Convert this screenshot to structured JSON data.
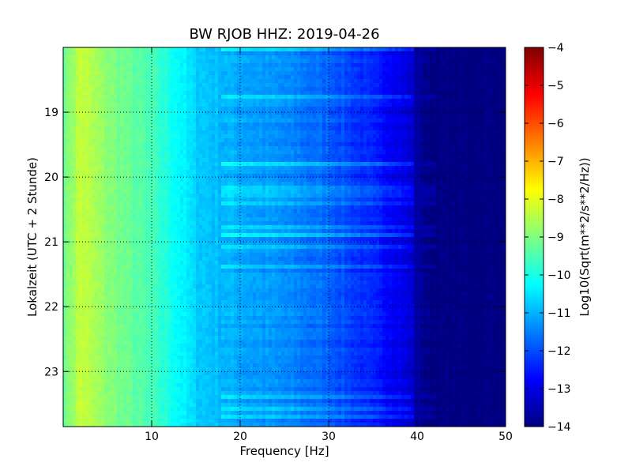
{
  "chart_data": {
    "type": "heatmap",
    "title": "BW RJOB HHZ: 2019-04-26",
    "xlabel": "Frequency [Hz]",
    "ylabel": "Lokalzeit (UTC + 2 Stunde)",
    "xlim": [
      0,
      50
    ],
    "ylim_hours": [
      18.0,
      23.85
    ],
    "x_ticks": [
      10,
      20,
      30,
      40,
      50
    ],
    "y_ticks": [
      19,
      20,
      21,
      22,
      23
    ],
    "grid": true,
    "colorbar": {
      "label": "Log10(Sqrt(m**2/s**2/Hz))",
      "range": [
        -14,
        -4
      ],
      "ticks": [
        -4,
        -5,
        -6,
        -7,
        -8,
        -9,
        -10,
        -11,
        -12,
        -13,
        -14
      ],
      "colormap": [
        "#00007f",
        "#0000ff",
        "#007fff",
        "#00ffff",
        "#7fff7f",
        "#ffff00",
        "#ff7f00",
        "#ff0000",
        "#7f0000"
      ]
    },
    "spectrum_profile": {
      "frequency_hz": [
        0,
        2,
        5,
        10,
        12,
        15,
        20,
        25,
        30,
        35,
        38,
        40,
        41,
        50
      ],
      "log10_amplitude": [
        -9.2,
        -8.3,
        -8.9,
        -9.6,
        -10.0,
        -10.7,
        -11.1,
        -11.4,
        -11.8,
        -12.5,
        -12.9,
        -13.4,
        -14.0,
        -14.0
      ]
    }
  }
}
